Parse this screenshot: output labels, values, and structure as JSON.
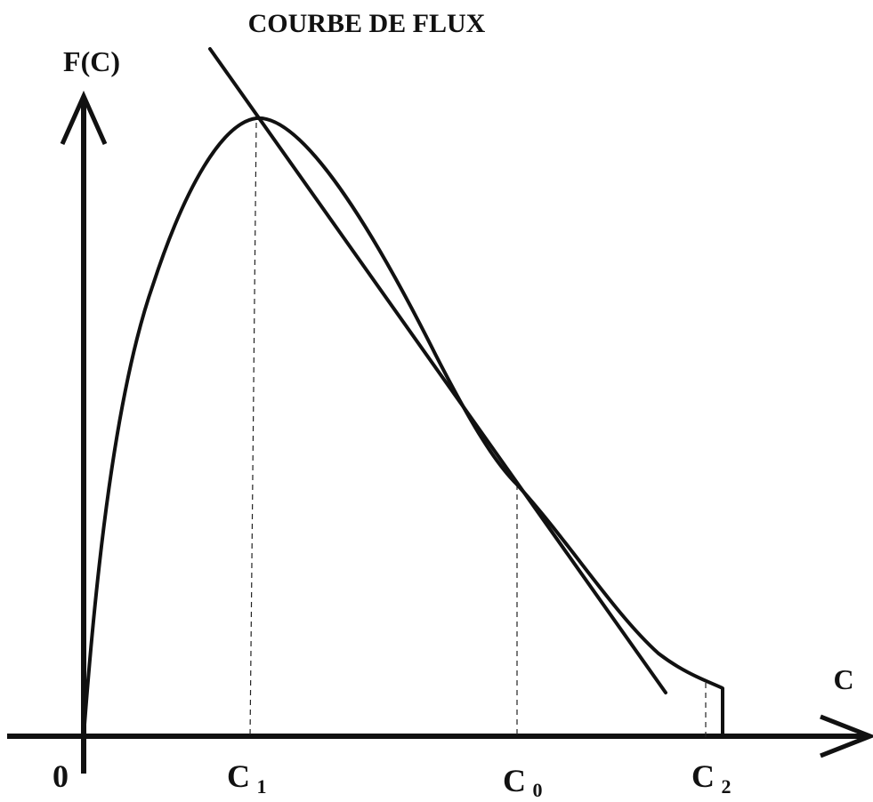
{
  "chart_data": {
    "type": "line",
    "title": "COURBE DE FLUX",
    "ylabel": "F(C)",
    "xlabel": "C",
    "origin_label": "0",
    "ticks": [
      {
        "base": "C",
        "sub": "1"
      },
      {
        "base": "C",
        "sub": "0"
      },
      {
        "base": "C",
        "sub": "2"
      }
    ],
    "series": [
      {
        "role": "flux-curve"
      },
      {
        "role": "tangent-line"
      }
    ],
    "grid": false,
    "legend": "none"
  },
  "colors": {
    "ink": "#111111",
    "background": "#ffffff"
  }
}
